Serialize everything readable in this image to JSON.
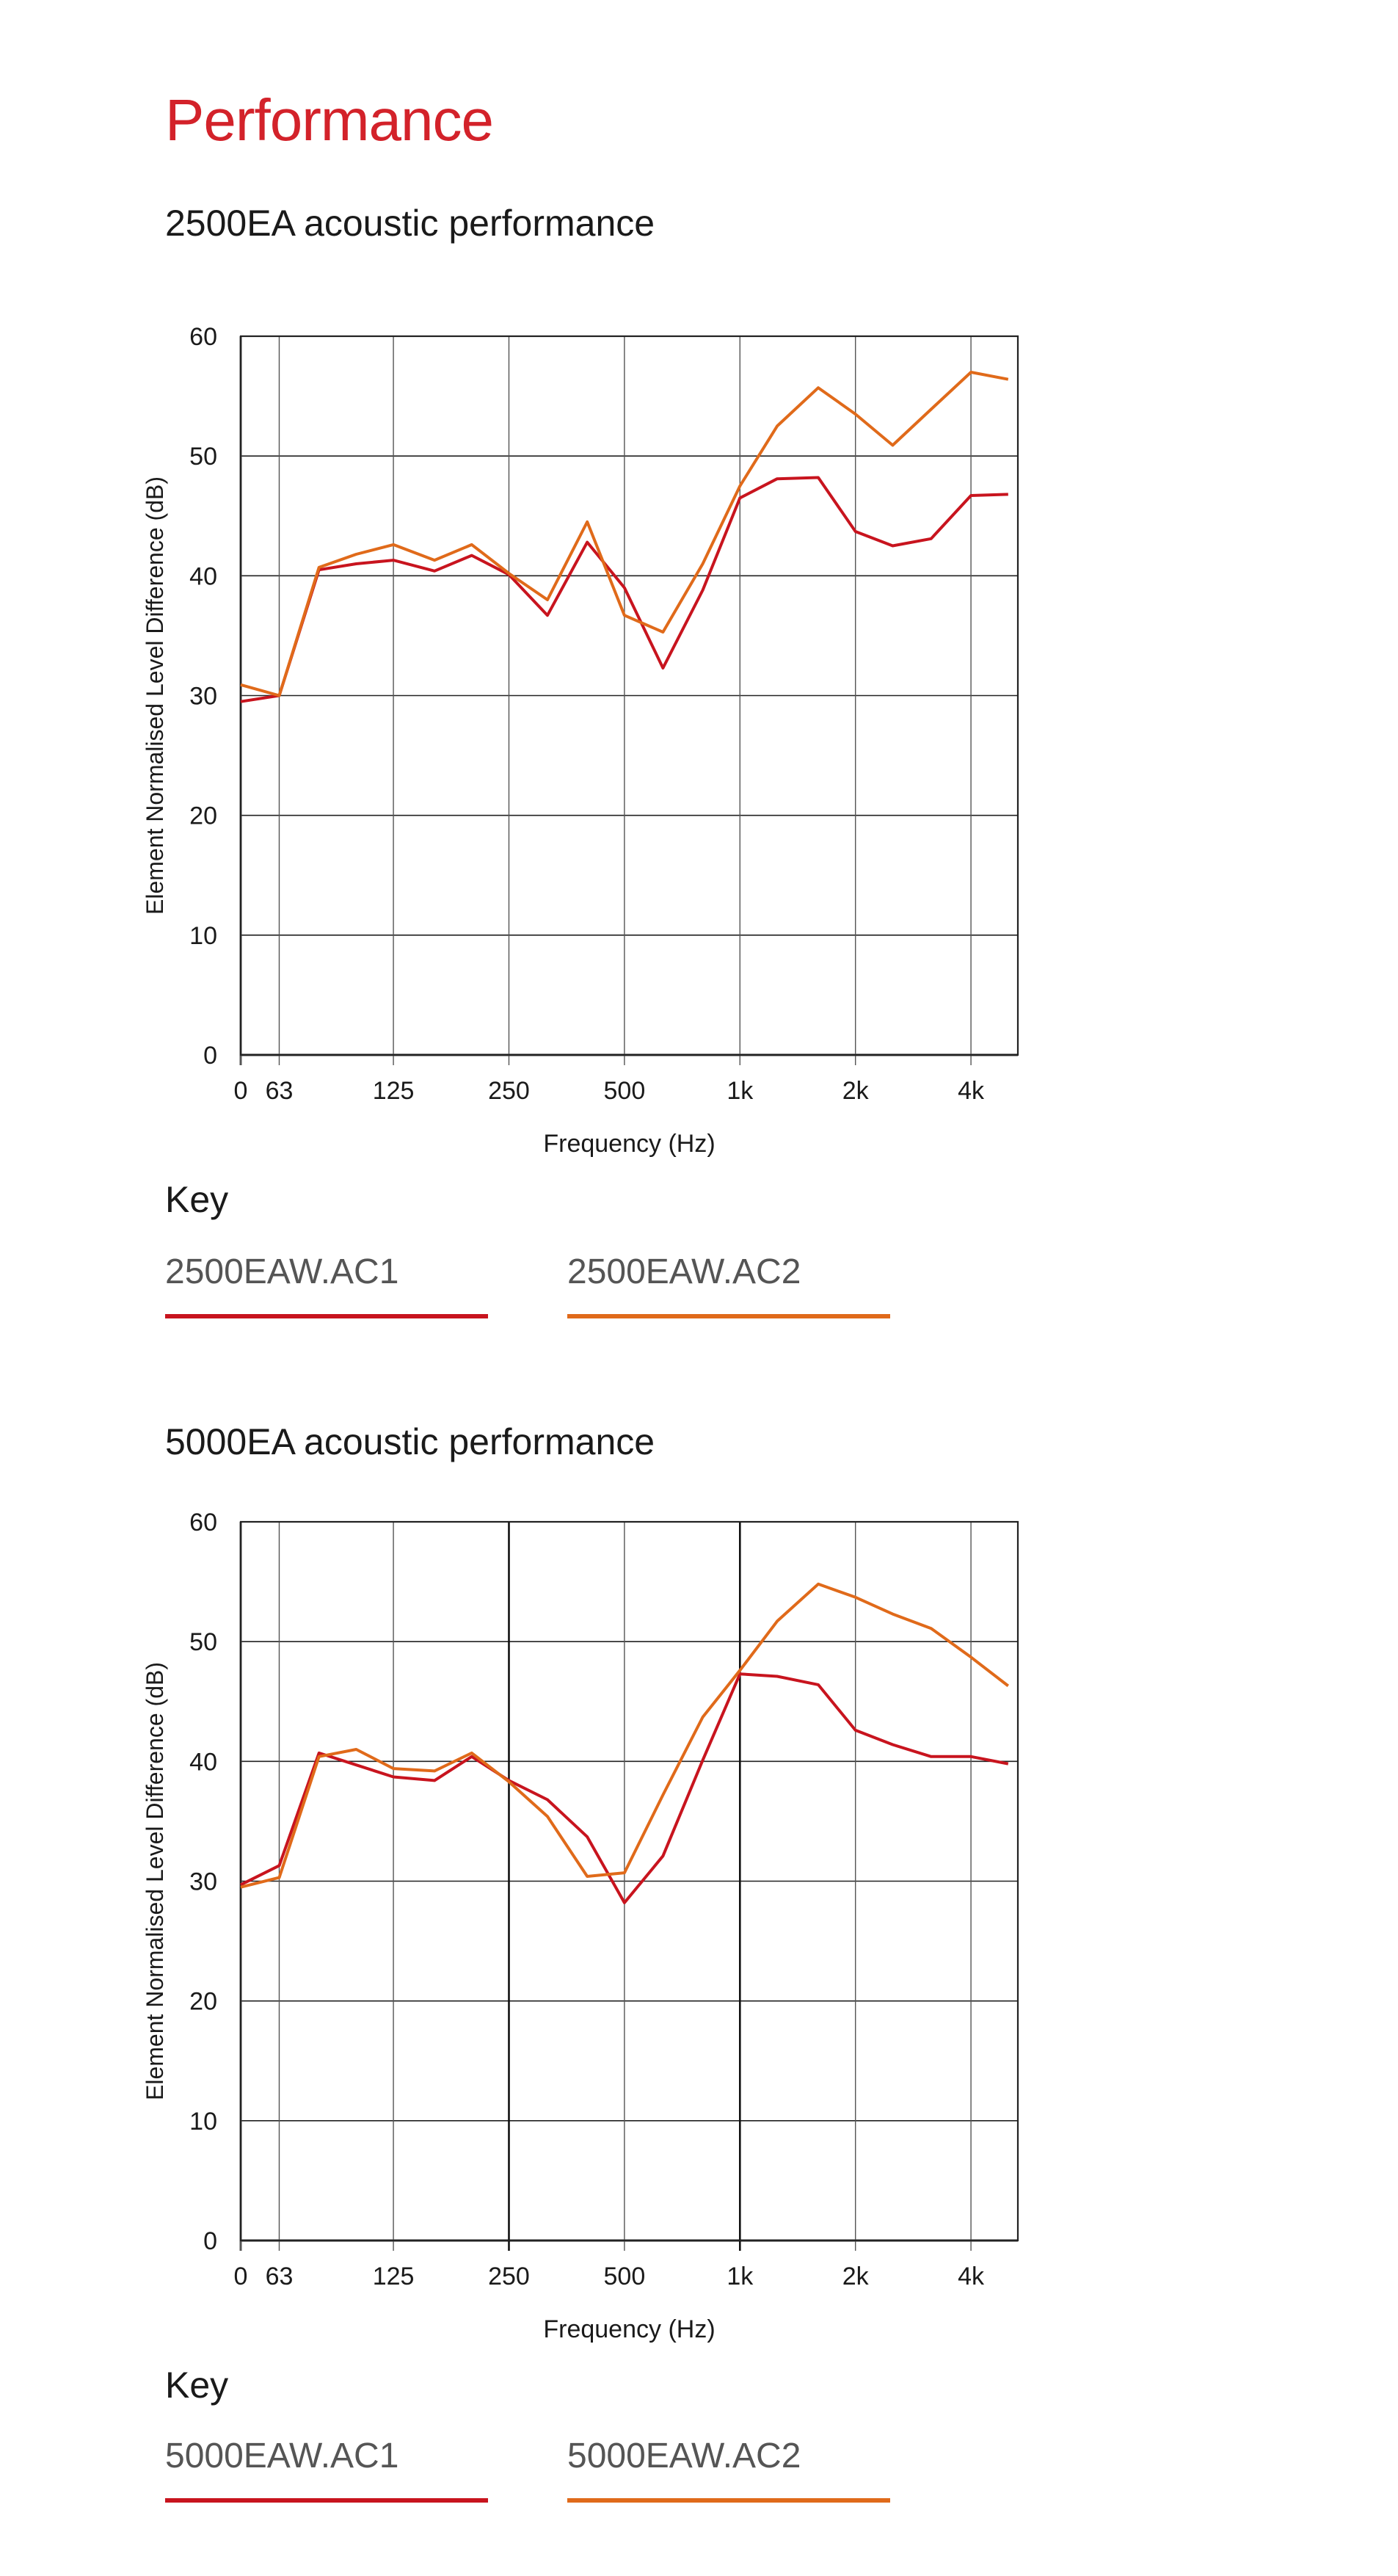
{
  "page": {
    "title": "Performance"
  },
  "colors": {
    "title": "#d3222a",
    "series_ac1": "#c8141e",
    "series_ac2": "#e06a1a"
  },
  "chart_data": [
    {
      "type": "line",
      "title": "2500EA acoustic performance",
      "xlabel": "Frequency (Hz)",
      "ylabel": "Element Normalised Level Difference (dB)",
      "ylim": [
        0,
        60
      ],
      "yticks": [
        "0",
        "10",
        "20",
        "30",
        "40",
        "50",
        "60"
      ],
      "xticks": [
        "0",
        "63",
        "125",
        "250",
        "500",
        "1k",
        "2k",
        "4k"
      ],
      "grid": true,
      "legend": "below",
      "key_title": "Key",
      "series": [
        {
          "name": "2500EAW.AC1",
          "x": [
            50,
            63,
            80,
            100,
            125,
            160,
            200,
            250,
            315,
            400,
            500,
            630,
            800,
            1000,
            1250,
            1600,
            2000,
            2500,
            3150,
            4000,
            5000
          ],
          "values": [
            29.5,
            30,
            40.5,
            41,
            41.3,
            40.4,
            41.7,
            40.1,
            36.7,
            42.8,
            39,
            32.3,
            38.8,
            46.5,
            48.1,
            48.2,
            43.7,
            42.5,
            43.1,
            46.7,
            46.8
          ]
        },
        {
          "name": "2500EAW.AC2",
          "x": [
            50,
            63,
            80,
            100,
            125,
            160,
            200,
            250,
            315,
            400,
            500,
            630,
            800,
            1000,
            1250,
            1600,
            2000,
            2500,
            3150,
            4000,
            5000
          ],
          "values": [
            30.9,
            30,
            40.7,
            41.8,
            42.6,
            41.3,
            42.6,
            40.2,
            38,
            44.5,
            36.7,
            35.3,
            41,
            47.5,
            52.5,
            55.7,
            53.5,
            50.9,
            53.9,
            57,
            56.4
          ]
        }
      ]
    },
    {
      "type": "line",
      "title": "5000EA acoustic performance",
      "xlabel": "Frequency (Hz)",
      "ylabel": "Element Normalised Level Difference (dB)",
      "ylim": [
        0,
        60
      ],
      "yticks": [
        "0",
        "10",
        "20",
        "30",
        "40",
        "50",
        "60"
      ],
      "xticks": [
        "0",
        "63",
        "125",
        "250",
        "500",
        "1k",
        "2k",
        "4k"
      ],
      "grid": true,
      "legend": "below",
      "key_title": "Key",
      "series": [
        {
          "name": "5000EAW.AC1",
          "x": [
            50,
            63,
            80,
            100,
            125,
            160,
            200,
            250,
            315,
            400,
            500,
            630,
            800,
            1000,
            1250,
            1600,
            2000,
            2500,
            3150,
            4000,
            5000
          ],
          "values": [
            29.7,
            31.3,
            40.7,
            39.7,
            38.7,
            38.4,
            40.4,
            38.4,
            36.8,
            33.7,
            28.2,
            32.1,
            40.1,
            47.3,
            47.1,
            46.4,
            42.6,
            41.4,
            40.4,
            40.4,
            39.8
          ]
        },
        {
          "name": "5000EAW.AC2",
          "x": [
            50,
            63,
            80,
            100,
            125,
            160,
            200,
            250,
            315,
            400,
            500,
            630,
            800,
            1000,
            1250,
            1600,
            2000,
            2500,
            3150,
            4000,
            5000
          ],
          "values": [
            29.5,
            30.3,
            40.4,
            41,
            39.4,
            39.2,
            40.7,
            38.3,
            35.4,
            30.4,
            30.7,
            37.2,
            43.7,
            47.6,
            51.7,
            54.8,
            53.7,
            52.3,
            51.1,
            48.7,
            46.3
          ]
        }
      ]
    }
  ]
}
